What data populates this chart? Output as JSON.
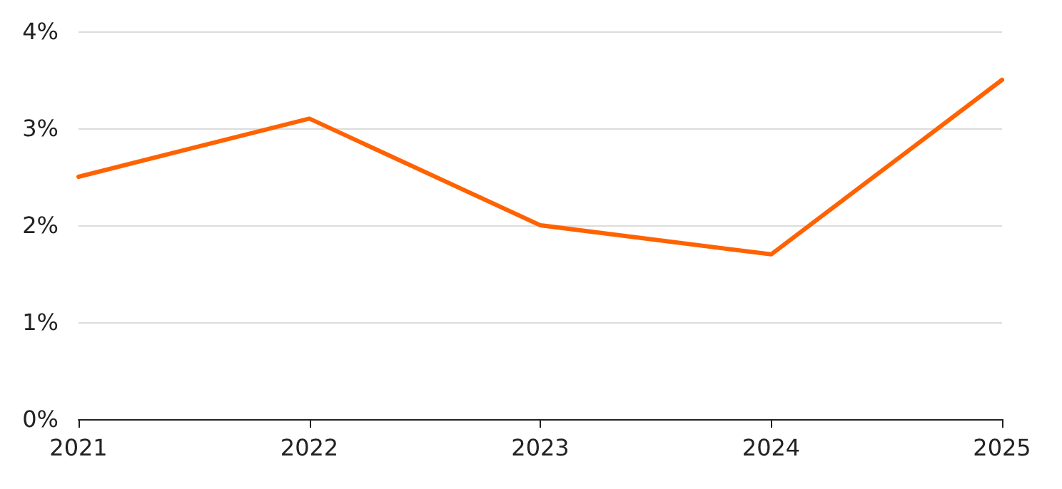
{
  "chart_data": {
    "type": "line",
    "categories": [
      "2021",
      "2022",
      "2023",
      "2024",
      "2025"
    ],
    "series": [
      {
        "color": "#ff6200",
        "values": [
          2.5,
          3.1,
          2.0,
          1.7,
          3.5
        ]
      }
    ],
    "ylim": [
      0,
      4
    ],
    "yticks": [
      {
        "value": 0,
        "label": "0%"
      },
      {
        "value": 1,
        "label": "1%"
      },
      {
        "value": 2,
        "label": "2%"
      },
      {
        "value": 3,
        "label": "3%"
      },
      {
        "value": 4,
        "label": "4%"
      }
    ],
    "grid": "y",
    "marker": "none",
    "line_style": "solid"
  }
}
